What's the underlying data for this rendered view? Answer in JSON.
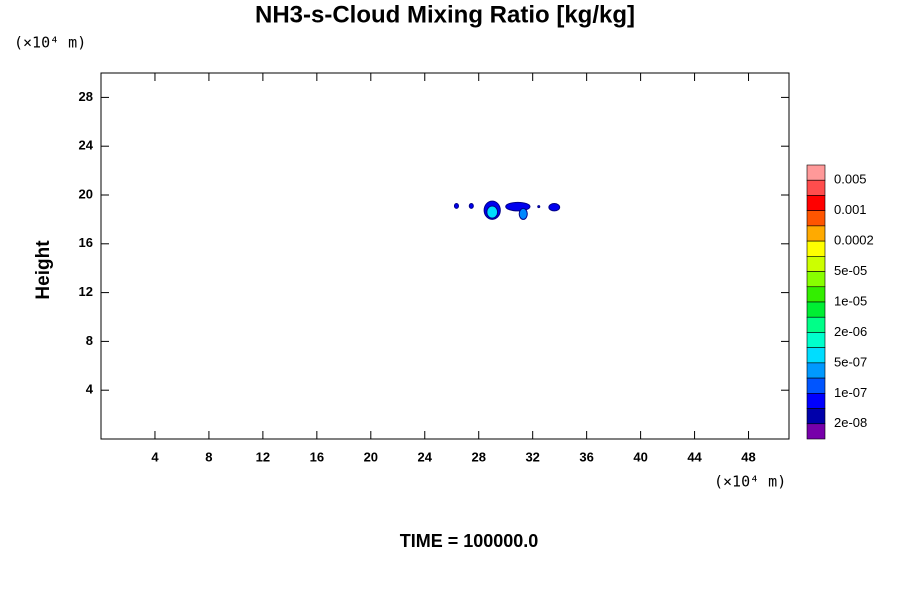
{
  "chart_data": {
    "type": "contour",
    "title": "NH3-s-Cloud Mixing Ratio [kg/kg]",
    "y_label": "Height",
    "y_unit": "(×10⁴ m)",
    "x_unit": "(×10⁴ m)",
    "footer": "TIME = 100000.0",
    "xlim": [
      0,
      51
    ],
    "ylim": [
      0,
      30
    ],
    "xticks": [
      4,
      8,
      12,
      16,
      20,
      24,
      28,
      32,
      36,
      40,
      44,
      48
    ],
    "yticks": [
      4,
      8,
      12,
      16,
      20,
      24,
      28
    ],
    "features": [
      {
        "x": [
          26.2,
          26.5
        ],
        "y": [
          18.9,
          19.3
        ],
        "color": "#0000ee"
      },
      {
        "x": [
          27.3,
          27.6
        ],
        "y": [
          18.9,
          19.3
        ],
        "color": "#0000ee"
      },
      {
        "x": [
          28.4,
          29.6
        ],
        "y": [
          18.0,
          19.5
        ],
        "color": "#0000ee"
      },
      {
        "x": [
          28.6,
          29.4
        ],
        "y": [
          18.1,
          19.1
        ],
        "color": "#00ddff"
      },
      {
        "x": [
          30.0,
          31.8
        ],
        "y": [
          18.7,
          19.4
        ],
        "color": "#0000ee"
      },
      {
        "x": [
          31.0,
          31.6
        ],
        "y": [
          18.0,
          18.9
        ],
        "color": "#0088ff"
      },
      {
        "x": [
          32.4,
          32.5
        ],
        "y": [
          19.0,
          19.1
        ],
        "color": "#0000ee"
      },
      {
        "x": [
          33.2,
          34.0
        ],
        "y": [
          18.7,
          19.3
        ],
        "color": "#0000ee"
      }
    ],
    "colorbar": {
      "colors": [
        "#ff9999",
        "#ff4d4d",
        "#ff0000",
        "#ff5500",
        "#ffaa00",
        "#ffff00",
        "#ccff00",
        "#88ff00",
        "#33ee00",
        "#00ee33",
        "#00ff88",
        "#00ffcc",
        "#00ddff",
        "#0099ff",
        "#0055ff",
        "#0000ff",
        "#0000aa",
        "#7700aa"
      ],
      "labels": [
        "0.005",
        "0.001",
        "0.0002",
        "5e-05",
        "1e-05",
        "2e-06",
        "5e-07",
        "1e-07",
        "2e-08"
      ]
    }
  }
}
